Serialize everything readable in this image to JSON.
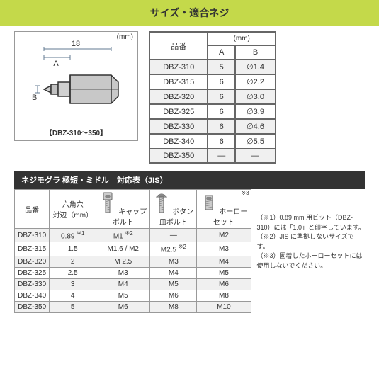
{
  "header_title": "サイズ・適合ネジ",
  "diagram": {
    "mm_unit": "(mm)",
    "length_label": "18",
    "a_label": "A",
    "b_label": "B",
    "caption": "【DBZ-310～350】"
  },
  "spec_table": {
    "col_item": "品番",
    "col_mm": "(mm)",
    "col_a": "A",
    "col_b": "B",
    "rows": [
      {
        "item": "DBZ-310",
        "a": "5",
        "b": "∅1.4"
      },
      {
        "item": "DBZ-315",
        "a": "6",
        "b": "∅2.2"
      },
      {
        "item": "DBZ-320",
        "a": "6",
        "b": "∅3.0"
      },
      {
        "item": "DBZ-325",
        "a": "6",
        "b": "∅3.9"
      },
      {
        "item": "DBZ-330",
        "a": "6",
        "b": "∅4.6"
      },
      {
        "item": "DBZ-340",
        "a": "6",
        "b": "∅5.5"
      },
      {
        "item": "DBZ-350",
        "a": "—",
        "b": "—"
      }
    ]
  },
  "section2_title": "ネジモグラ 極短・ミドル　対応表（JIS）",
  "compat_table": {
    "col_item": "品番",
    "col_hex": "六角穴\n対辺（mm）",
    "col_cap": "キャップ\nボルト",
    "col_button": "ボタン\n皿ボルト",
    "col_hollow": "ホーロー\nセット",
    "ref_hollow": "※3",
    "rows": [
      {
        "item": "DBZ-310",
        "hex": "0.89",
        "hex_ref": "※1",
        "cap": "M1",
        "cap_ref": "※2",
        "btn": "—",
        "hol": "M2"
      },
      {
        "item": "DBZ-315",
        "hex": "1.5",
        "cap": "M1.6 / M2",
        "btn": "M2.5",
        "btn_ref": "※2",
        "hol": "M3"
      },
      {
        "item": "DBZ-320",
        "hex": "2",
        "cap": "M 2.5",
        "btn": "M3",
        "hol": "M4"
      },
      {
        "item": "DBZ-325",
        "hex": "2.5",
        "cap": "M3",
        "btn": "M4",
        "hol": "M5"
      },
      {
        "item": "DBZ-330",
        "hex": "3",
        "cap": "M4",
        "btn": "M5",
        "hol": "M6"
      },
      {
        "item": "DBZ-340",
        "hex": "4",
        "cap": "M5",
        "btn": "M6",
        "hol": "M8"
      },
      {
        "item": "DBZ-350",
        "hex": "5",
        "cap": "M6",
        "btn": "M8",
        "hol": "M10"
      }
    ]
  },
  "notes": {
    "n1": "（※1）0.89 mm 用ビット（DBZ-310）には「1.0」と印字しています。",
    "n2": "（※2）JIS に準拠しないサイズです。",
    "n3": "（※3）固着したホーローセットには使用しないでください。"
  },
  "colors": {
    "header_bg": "#c4d94a",
    "section_bg": "#333333",
    "border": "#666666",
    "alt_row": "#f0f0f0"
  }
}
